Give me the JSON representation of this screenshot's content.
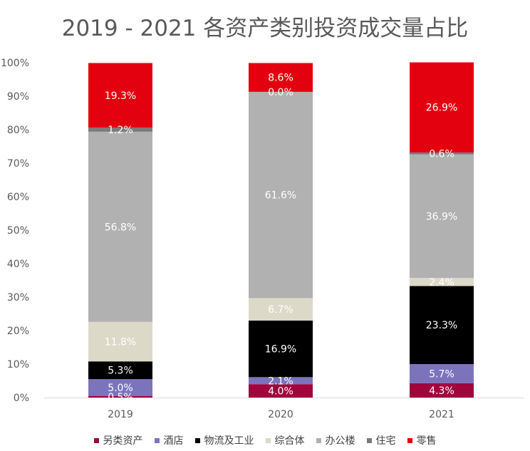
{
  "chart_data": {
    "type": "bar",
    "stacked": true,
    "percent_stacked": true,
    "title": "2019 - 2021 各资产类别投资成交量占比",
    "categories": [
      "2019",
      "2020",
      "2021"
    ],
    "ylim": [
      0,
      100
    ],
    "y_ticks": [
      "0%",
      "10%",
      "20%",
      "30%",
      "40%",
      "50%",
      "60%",
      "70%",
      "80%",
      "90%",
      "100%"
    ],
    "grid": false,
    "legend_position": "bottom",
    "series": [
      {
        "name": "另类资产",
        "color": "#a0063c",
        "values": [
          0.5,
          4.0,
          4.3
        ],
        "labels": [
          "0.5%",
          "4.0%",
          "4.3%"
        ]
      },
      {
        "name": "酒店",
        "color": "#7b74bd",
        "values": [
          5.0,
          2.1,
          5.7
        ],
        "labels": [
          "5.0%",
          "2.1%",
          "5.7%"
        ]
      },
      {
        "name": "物流及工业",
        "color": "#000000",
        "values": [
          5.3,
          16.9,
          23.3
        ],
        "labels": [
          "5.3%",
          "16.9%",
          "23.3%"
        ]
      },
      {
        "name": "综合体",
        "color": "#ddd9c9",
        "values": [
          11.8,
          6.7,
          2.4
        ],
        "labels": [
          "11.8%",
          "6.7%",
          "2.4%"
        ]
      },
      {
        "name": "办公楼",
        "color": "#b1b1b1",
        "values": [
          56.8,
          61.6,
          36.9
        ],
        "labels": [
          "56.8%",
          "61.6%",
          "36.9%"
        ]
      },
      {
        "name": "住宅",
        "color": "#7a7a7a",
        "values": [
          1.2,
          0.0,
          0.6
        ],
        "labels": [
          "1.2%",
          "0.0%",
          "0.6%"
        ]
      },
      {
        "name": "零售",
        "color": "#e3000f",
        "values": [
          19.3,
          8.6,
          26.9
        ],
        "labels": [
          "19.3%",
          "8.6%",
          "26.9%"
        ]
      }
    ]
  }
}
